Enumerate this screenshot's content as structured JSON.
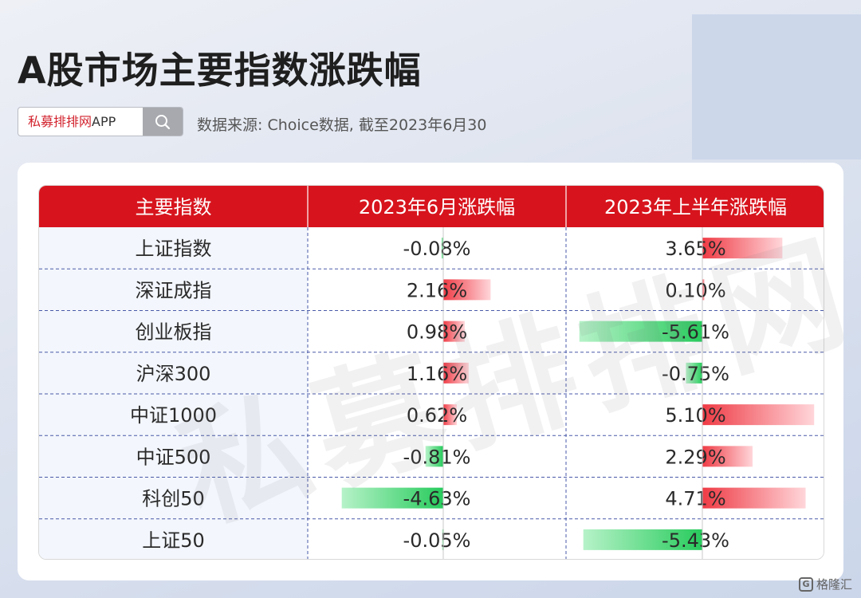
{
  "page": {
    "title": "A股市场主要指数涨跌幅",
    "search_label_red": "私募排排网",
    "search_label_rest": "APP",
    "source": "数据来源: Choice数据, 截至2023年6月30",
    "watermark": "私募排排网",
    "corner_logo": "格隆汇",
    "corner_logo_mark": "G"
  },
  "chart_data": {
    "type": "table",
    "columns": [
      "主要指数",
      "2023年6月涨跌幅",
      "2023年上半年涨跌幅"
    ],
    "rows": [
      {
        "name": "上证指数",
        "june": -0.08,
        "h1": 3.65
      },
      {
        "name": "深证成指",
        "june": 2.16,
        "h1": 0.1
      },
      {
        "name": "创业板指",
        "june": 0.98,
        "h1": -5.61
      },
      {
        "name": "沪深300",
        "june": 1.16,
        "h1": -0.75
      },
      {
        "name": "中证1000",
        "june": 0.62,
        "h1": 5.1
      },
      {
        "name": "中证500",
        "june": -0.81,
        "h1": 2.29
      },
      {
        "name": "科创50",
        "june": -4.63,
        "h1": 4.71
      },
      {
        "name": "上证50",
        "june": -0.05,
        "h1": -5.43
      }
    ],
    "colors": {
      "header": "#d7141d",
      "positive": "#ef3b45",
      "negative": "#27cb5c"
    }
  }
}
